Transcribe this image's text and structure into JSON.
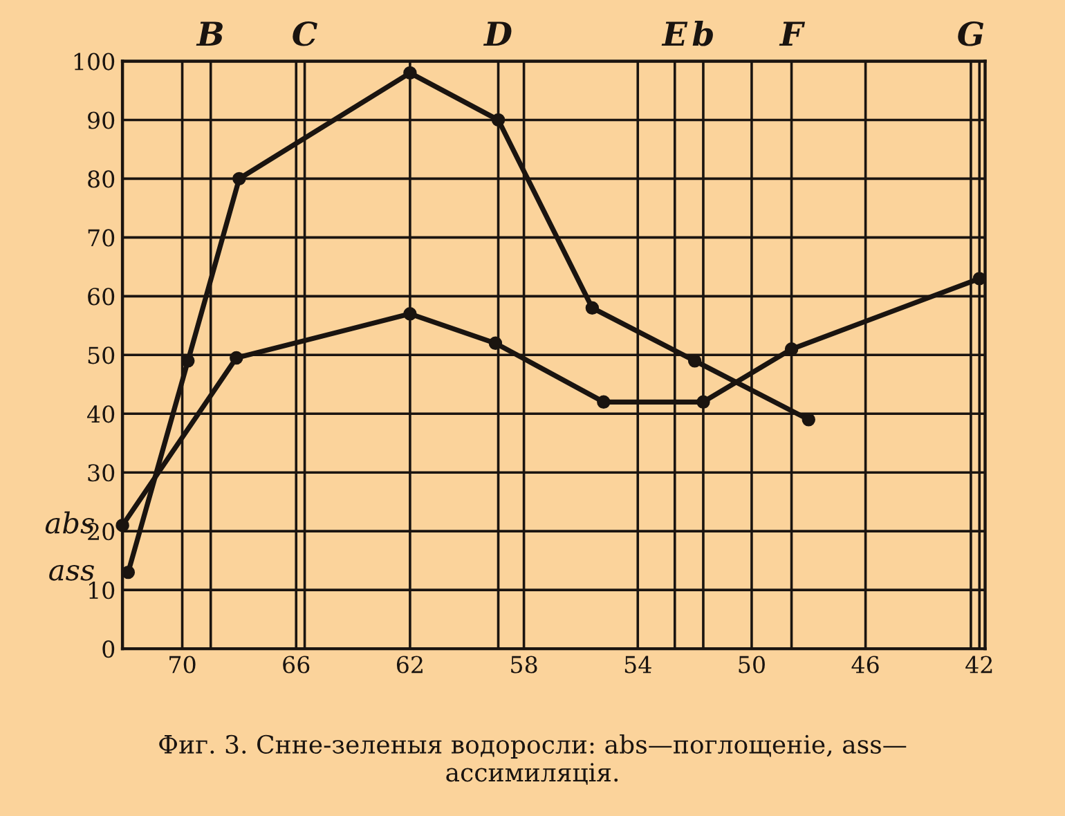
{
  "chart_data": {
    "type": "line",
    "series": [
      {
        "name": "abs",
        "color": "#1a1410",
        "x": [
          72.1,
          68.1,
          62.0,
          59.0,
          55.2,
          51.7,
          48.6,
          42.0
        ],
        "values": [
          21,
          49.5,
          57,
          52,
          42,
          42,
          51,
          63
        ]
      },
      {
        "name": "ass",
        "color": "#1a1410",
        "x": [
          71.9,
          69.8,
          68.0,
          62.0,
          58.9,
          55.6,
          52.0,
          48.0
        ],
        "values": [
          13,
          49,
          80,
          98,
          90,
          58,
          49,
          39
        ]
      }
    ],
    "xlim": [
      72.1,
      41.8
    ],
    "xticks": [
      70,
      66,
      62,
      58,
      54,
      50,
      46,
      42
    ],
    "ylim": [
      0,
      100
    ],
    "yticks": [
      0,
      10,
      20,
      30,
      40,
      50,
      60,
      70,
      80,
      90,
      100
    ],
    "ref_lines": [
      {
        "axis": "x",
        "value": 69.0,
        "label": "B"
      },
      {
        "axis": "x",
        "value": 65.7,
        "label": "C"
      },
      {
        "axis": "x",
        "value": 58.9,
        "label": "D"
      },
      {
        "axis": "x",
        "value": 52.7,
        "label": "E"
      },
      {
        "axis": "x",
        "value": 51.7,
        "label": "b"
      },
      {
        "axis": "x",
        "value": 48.6,
        "label": "F"
      },
      {
        "axis": "x",
        "value": 42.3,
        "label": "G"
      }
    ],
    "grid": true,
    "marker": "circle",
    "line_style": "solid",
    "legend": false,
    "annotations": [
      "Фиг. 3. Снне-зеленыя водоросли: abs—поглощеніе, ass—\nассимиляція."
    ]
  }
}
